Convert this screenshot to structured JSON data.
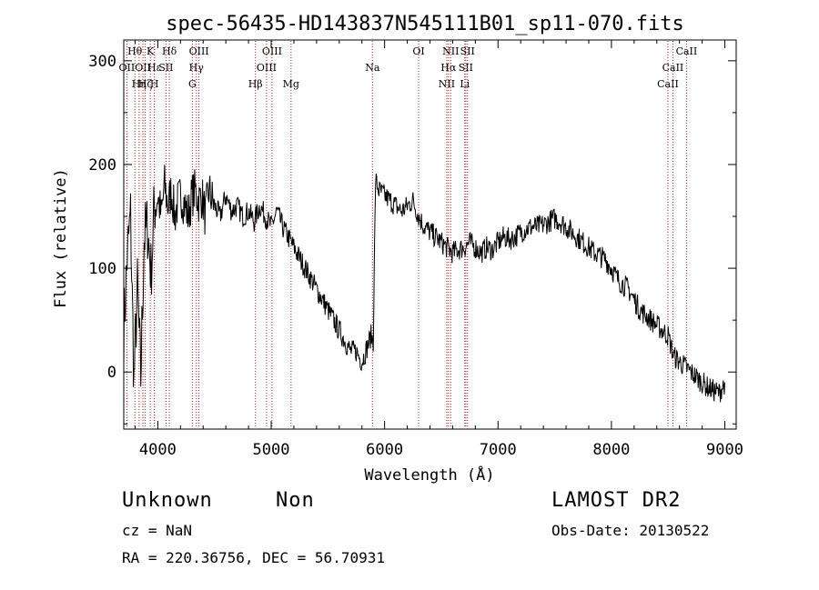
{
  "chart_data": {
    "type": "line",
    "title": "spec-56435-HD143837N545111B01_sp11-070.fits",
    "xlabel": "Wavelength (Å)",
    "ylabel": "Flux (relative)",
    "xlim": [
      3700,
      9100
    ],
    "ylim": [
      -55,
      320
    ],
    "xticks": [
      4000,
      5000,
      6000,
      7000,
      8000,
      9000
    ],
    "yticks": [
      0,
      100,
      200,
      300
    ],
    "grid": false,
    "series": [
      {
        "color": "#000000",
        "x": [
          3700,
          3730,
          3760,
          3790,
          3820,
          3850,
          3880,
          3910,
          3940,
          3970,
          4000,
          4030,
          4060,
          4090,
          4120,
          4150,
          4180,
          4210,
          4240,
          4270,
          4300,
          4330,
          4360,
          4390,
          4420,
          4450,
          4500,
          4550,
          4600,
          4650,
          4700,
          4750,
          4800,
          4850,
          4900,
          4950,
          5000,
          5050,
          5100,
          5150,
          5200,
          5250,
          5300,
          5350,
          5400,
          5450,
          5500,
          5550,
          5600,
          5650,
          5700,
          5750,
          5800,
          5850,
          5880,
          5900,
          5920,
          5950,
          6000,
          6050,
          6100,
          6150,
          6200,
          6250,
          6300,
          6350,
          6400,
          6450,
          6500,
          6550,
          6600,
          6650,
          6700,
          6750,
          6800,
          6850,
          6900,
          6950,
          7000,
          7050,
          7100,
          7150,
          7200,
          7250,
          7300,
          7350,
          7400,
          7450,
          7500,
          7550,
          7600,
          7650,
          7700,
          7750,
          7800,
          7850,
          7900,
          7950,
          8000,
          8050,
          8100,
          8150,
          8200,
          8250,
          8300,
          8350,
          8400,
          8450,
          8500,
          8550,
          8600,
          8650,
          8700,
          8750,
          8800,
          8850,
          8900,
          8950,
          9000
        ],
        "y": [
          40,
          110,
          150,
          -10,
          80,
          -5,
          130,
          140,
          95,
          160,
          170,
          150,
          180,
          160,
          175,
          150,
          165,
          170,
          160,
          150,
          170,
          175,
          165,
          170,
          150,
          175,
          160,
          150,
          170,
          155,
          160,
          150,
          155,
          145,
          160,
          150,
          140,
          155,
          140,
          130,
          120,
          110,
          100,
          90,
          80,
          70,
          60,
          50,
          40,
          30,
          20,
          20,
          10,
          25,
          35,
          30,
          185,
          175,
          170,
          165,
          160,
          155,
          160,
          165,
          150,
          140,
          135,
          130,
          125,
          120,
          115,
          118,
          120,
          125,
          120,
          115,
          120,
          118,
          125,
          130,
          128,
          130,
          135,
          138,
          140,
          140,
          142,
          145,
          148,
          145,
          140,
          135,
          130,
          125,
          120,
          115,
          112,
          108,
          100,
          90,
          85,
          80,
          70,
          60,
          55,
          50,
          45,
          40,
          35,
          15,
          10,
          5,
          0,
          -5,
          -10,
          -15,
          -18,
          -20,
          -10
        ]
      }
    ],
    "line_markers": [
      {
        "wavelength": 3727,
        "label": "OII",
        "row": 2
      },
      {
        "wavelength": 3798,
        "label": "Hθ",
        "row": 1
      },
      {
        "wavelength": 3835,
        "label": "Hη",
        "row": 3
      },
      {
        "wavelength": 3869,
        "label": "OII",
        "row": 2
      },
      {
        "wavelength": 3889,
        "label": "Hζ",
        "row": 3
      },
      {
        "wavelength": 3934,
        "label": "K",
        "row": 1
      },
      {
        "wavelength": 3970,
        "label": "H",
        "row": 3
      },
      {
        "wavelength": 3970,
        "label": "Hε",
        "row": 2
      },
      {
        "wavelength": 4072,
        "label": "SII",
        "row": 2
      },
      {
        "wavelength": 4102,
        "label": "Hδ",
        "row": 1
      },
      {
        "wavelength": 4305,
        "label": "G",
        "row": 3
      },
      {
        "wavelength": 4340,
        "label": "Hγ",
        "row": 2
      },
      {
        "wavelength": 4363,
        "label": "OIII",
        "row": 1
      },
      {
        "wavelength": 4861,
        "label": "Hβ",
        "row": 3
      },
      {
        "wavelength": 4959,
        "label": "OIII",
        "row": 2
      },
      {
        "wavelength": 5007,
        "label": "OIII",
        "row": 1
      },
      {
        "wavelength": 5175,
        "label": "Mg",
        "row": 3
      },
      {
        "wavelength": 5893,
        "label": "Na",
        "row": 2
      },
      {
        "wavelength": 6300,
        "label": "OI",
        "row": 1
      },
      {
        "wavelength": 6548,
        "label": "NII",
        "row": 3
      },
      {
        "wavelength": 6563,
        "label": "Hα",
        "row": 2
      },
      {
        "wavelength": 6583,
        "label": "NII",
        "row": 1
      },
      {
        "wavelength": 6707,
        "label": "Li",
        "row": 3
      },
      {
        "wavelength": 6716,
        "label": "SII",
        "row": 2
      },
      {
        "wavelength": 6731,
        "label": "SII",
        "row": 1
      },
      {
        "wavelength": 8498,
        "label": "CaII",
        "row": 3
      },
      {
        "wavelength": 8542,
        "label": "CaII",
        "row": 2
      },
      {
        "wavelength": 8662,
        "label": "CaII",
        "row": 1
      }
    ]
  },
  "info": {
    "class": "Unknown",
    "subclass": "Non",
    "survey": "LAMOST DR2",
    "cz": "cz = NaN",
    "obs_date": "Obs-Date: 20130522",
    "coords": "RA = 220.36756, DEC =  56.70931"
  }
}
